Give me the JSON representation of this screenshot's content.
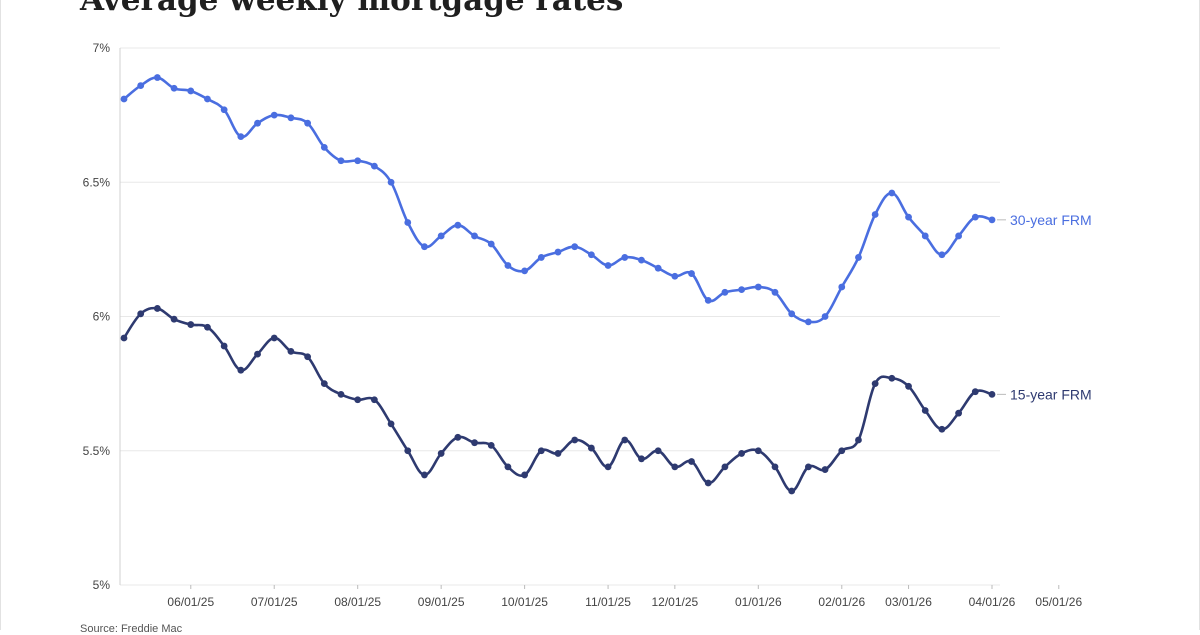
{
  "chart_data": {
    "type": "line",
    "title": "Average weekly mortgage rates",
    "source": "Source: Freddie Mac",
    "xlabel": "",
    "ylabel": "",
    "ylim": [
      5,
      7
    ],
    "yticks": [
      {
        "value": 7,
        "label": "7%"
      },
      {
        "value": 6.5,
        "label": "6.5%"
      },
      {
        "value": 6,
        "label": "6%"
      },
      {
        "value": 5.5,
        "label": "5.5%"
      },
      {
        "value": 5,
        "label": "5%"
      }
    ],
    "xticks": [
      {
        "index": 4,
        "label": "06/01/25"
      },
      {
        "index": 9,
        "label": "07/01/25"
      },
      {
        "index": 14,
        "label": "08/01/25"
      },
      {
        "index": 19,
        "label": "09/01/25"
      },
      {
        "index": 24,
        "label": "10/01/25"
      },
      {
        "index": 29,
        "label": "11/01/25"
      },
      {
        "index": 33,
        "label": "12/01/25"
      },
      {
        "index": 38,
        "label": "01/01/26"
      },
      {
        "index": 43,
        "label": "02/01/26"
      },
      {
        "index": 47,
        "label": "03/01/26"
      },
      {
        "index": 52,
        "label": "04/01/26"
      },
      {
        "index": 56,
        "label": "05/01/26"
      }
    ],
    "grid": true,
    "series": [
      {
        "name": "30-year FRM",
        "color": "#4a6ee0",
        "values": [
          6.81,
          6.86,
          6.89,
          6.85,
          6.84,
          6.81,
          6.77,
          6.67,
          6.72,
          6.75,
          6.74,
          6.72,
          6.63,
          6.58,
          6.58,
          6.56,
          6.5,
          6.35,
          6.26,
          6.3,
          6.34,
          6.3,
          6.27,
          6.19,
          6.17,
          6.22,
          6.24,
          6.26,
          6.23,
          6.19,
          6.22,
          6.21,
          6.18,
          6.15,
          6.16,
          6.06,
          6.09,
          6.1,
          6.11,
          6.09,
          6.01,
          5.98,
          6.0,
          6.11,
          6.22,
          6.38,
          6.46,
          6.37,
          6.3,
          6.23,
          6.3,
          6.37,
          6.36
        ]
      },
      {
        "name": "15-year FRM",
        "color": "#2e3a70",
        "values": [
          5.92,
          6.01,
          6.03,
          5.99,
          5.97,
          5.96,
          5.89,
          5.8,
          5.86,
          5.92,
          5.87,
          5.85,
          5.75,
          5.71,
          5.69,
          5.69,
          5.6,
          5.5,
          5.41,
          5.49,
          5.55,
          5.53,
          5.52,
          5.44,
          5.41,
          5.5,
          5.49,
          5.54,
          5.51,
          5.44,
          5.54,
          5.47,
          5.5,
          5.44,
          5.46,
          5.38,
          5.44,
          5.49,
          5.5,
          5.44,
          5.35,
          5.44,
          5.43,
          5.5,
          5.54,
          5.75,
          5.77,
          5.74,
          5.65,
          5.58,
          5.64,
          5.72,
          5.71
        ]
      }
    ]
  }
}
